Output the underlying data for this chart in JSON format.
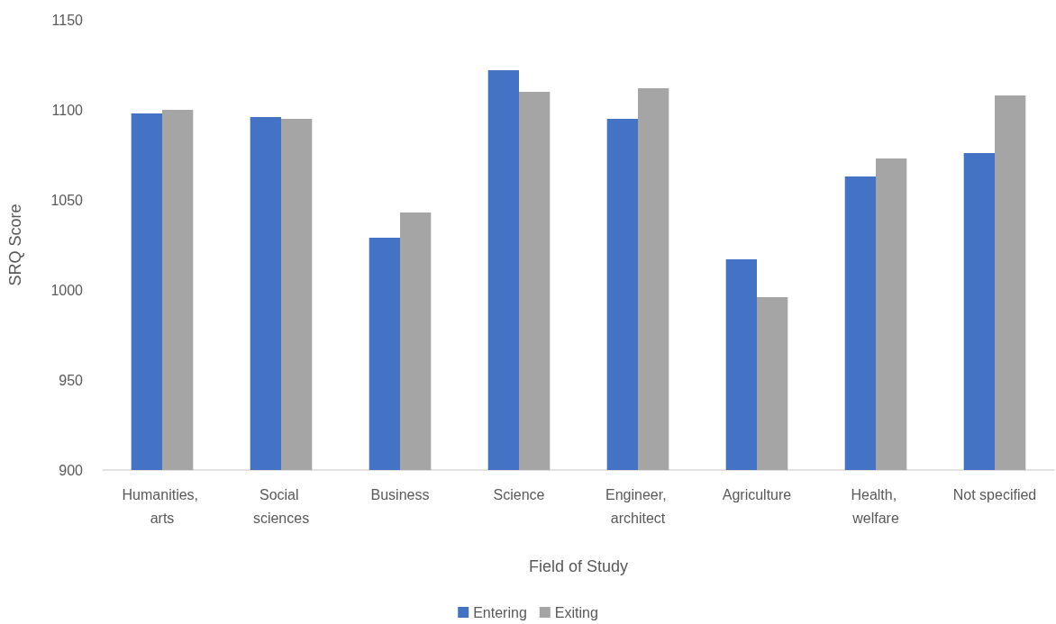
{
  "chart_data": {
    "type": "bar",
    "categories": [
      "Humanities, arts",
      "Social sciences",
      "Business",
      "Science",
      "Engineer, architect",
      "Agriculture",
      "Health, welfare",
      "Not specified"
    ],
    "series": [
      {
        "name": "Entering",
        "color": "#4472c4",
        "values": [
          1098,
          1096,
          1029,
          1122,
          1095,
          1017,
          1063,
          1076
        ]
      },
      {
        "name": "Exiting",
        "color": "#a5a5a5",
        "values": [
          1100,
          1095,
          1043,
          1110,
          1112,
          996,
          1073,
          1108
        ]
      }
    ],
    "xlabel": "Field of Study",
    "ylabel": "SRQ Score",
    "ylim": [
      900,
      1150
    ],
    "yticks": [
      900,
      950,
      1000,
      1050,
      1100,
      1150
    ],
    "grid": false,
    "legend": "bottom"
  }
}
